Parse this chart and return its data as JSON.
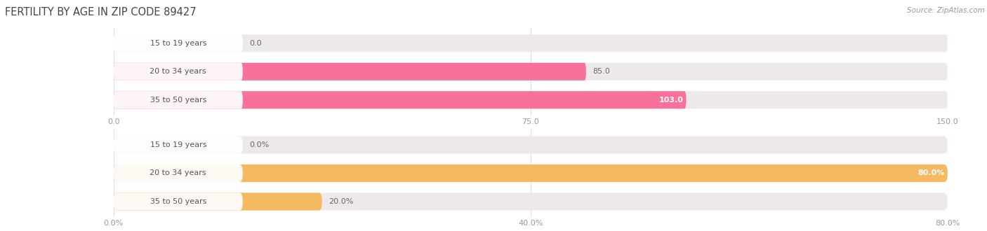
{
  "title": "FERTILITY BY AGE IN ZIP CODE 89427",
  "source": "Source: ZipAtlas.com",
  "top_chart": {
    "categories": [
      "15 to 19 years",
      "20 to 34 years",
      "35 to 50 years"
    ],
    "values": [
      0.0,
      85.0,
      103.0
    ],
    "bar_color": "#F7719A",
    "bar_bg_color": "#EDE9E9",
    "label_bg_color": "#FFFFFF",
    "xlim": [
      0,
      150
    ],
    "xticks": [
      0.0,
      75.0,
      150.0
    ],
    "xtick_labels": [
      "0.0",
      "75.0",
      "150.0"
    ],
    "value_labels": [
      "0.0",
      "85.0",
      "103.0"
    ],
    "value_inside": [
      false,
      false,
      true
    ]
  },
  "bottom_chart": {
    "categories": [
      "15 to 19 years",
      "20 to 34 years",
      "35 to 50 years"
    ],
    "values": [
      0.0,
      80.0,
      20.0
    ],
    "bar_color": "#F5B961",
    "bar_bg_color": "#EDE9E9",
    "label_bg_color": "#FFFFFF",
    "xlim": [
      0,
      80
    ],
    "xticks": [
      0.0,
      40.0,
      80.0
    ],
    "xtick_labels": [
      "0.0%",
      "40.0%",
      "80.0%"
    ],
    "value_labels": [
      "0.0%",
      "80.0%",
      "20.0%"
    ],
    "value_inside": [
      false,
      true,
      false
    ]
  },
  "label_color": "#555555",
  "tick_color": "#999999",
  "title_color": "#444444",
  "source_color": "#999999",
  "bg_color": "#FFFFFF",
  "bar_height": 0.62,
  "label_fontsize": 8.0,
  "tick_fontsize": 8.0,
  "title_fontsize": 10.5,
  "source_fontsize": 7.5,
  "value_label_inside_color": "#FFFFFF",
  "value_label_outside_color": "#666666"
}
